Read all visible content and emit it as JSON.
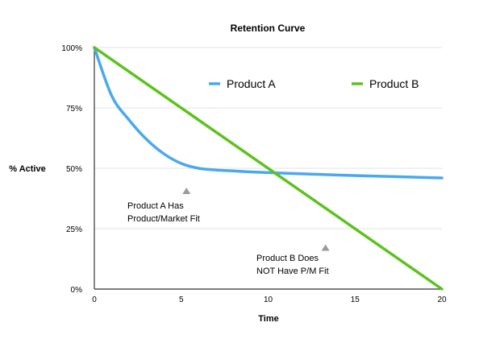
{
  "chart_data": {
    "type": "line",
    "title": "Retention Curve",
    "xlabel": "Time",
    "ylabel": "% Active",
    "xlim": [
      0,
      20
    ],
    "ylim": [
      0,
      100
    ],
    "x_ticks": [
      0,
      5,
      10,
      15,
      20
    ],
    "y_ticks": [
      0,
      25,
      50,
      75,
      100
    ],
    "x_tick_labels": [
      "0",
      "5",
      "10",
      "15",
      "20"
    ],
    "y_tick_labels": [
      "0%",
      "25%",
      "50%",
      "75%",
      "100%"
    ],
    "grid": true,
    "legend_position": "top-right",
    "series": [
      {
        "name": "Product A",
        "color": "#4aa8ee",
        "x": [
          0,
          1,
          2,
          3,
          4,
          5,
          6,
          7,
          8,
          9,
          10,
          12,
          14,
          16,
          18,
          20
        ],
        "y": [
          100,
          80,
          70,
          62,
          56,
          52,
          50,
          49.3,
          48.9,
          48.5,
          48.2,
          47.7,
          47.2,
          46.8,
          46.4,
          46
        ]
      },
      {
        "name": "Product B",
        "color": "#5cc21d",
        "x": [
          0,
          20
        ],
        "y": [
          100,
          0
        ]
      }
    ],
    "annotations": [
      {
        "lines": [
          "Product A Has",
          "Product/Market Fit"
        ],
        "arrow_to": [
          5.3,
          48
        ]
      },
      {
        "lines": [
          "Product B Does",
          "NOT Have P/M Fit"
        ],
        "arrow_to": [
          13.3,
          24.5
        ]
      }
    ]
  }
}
